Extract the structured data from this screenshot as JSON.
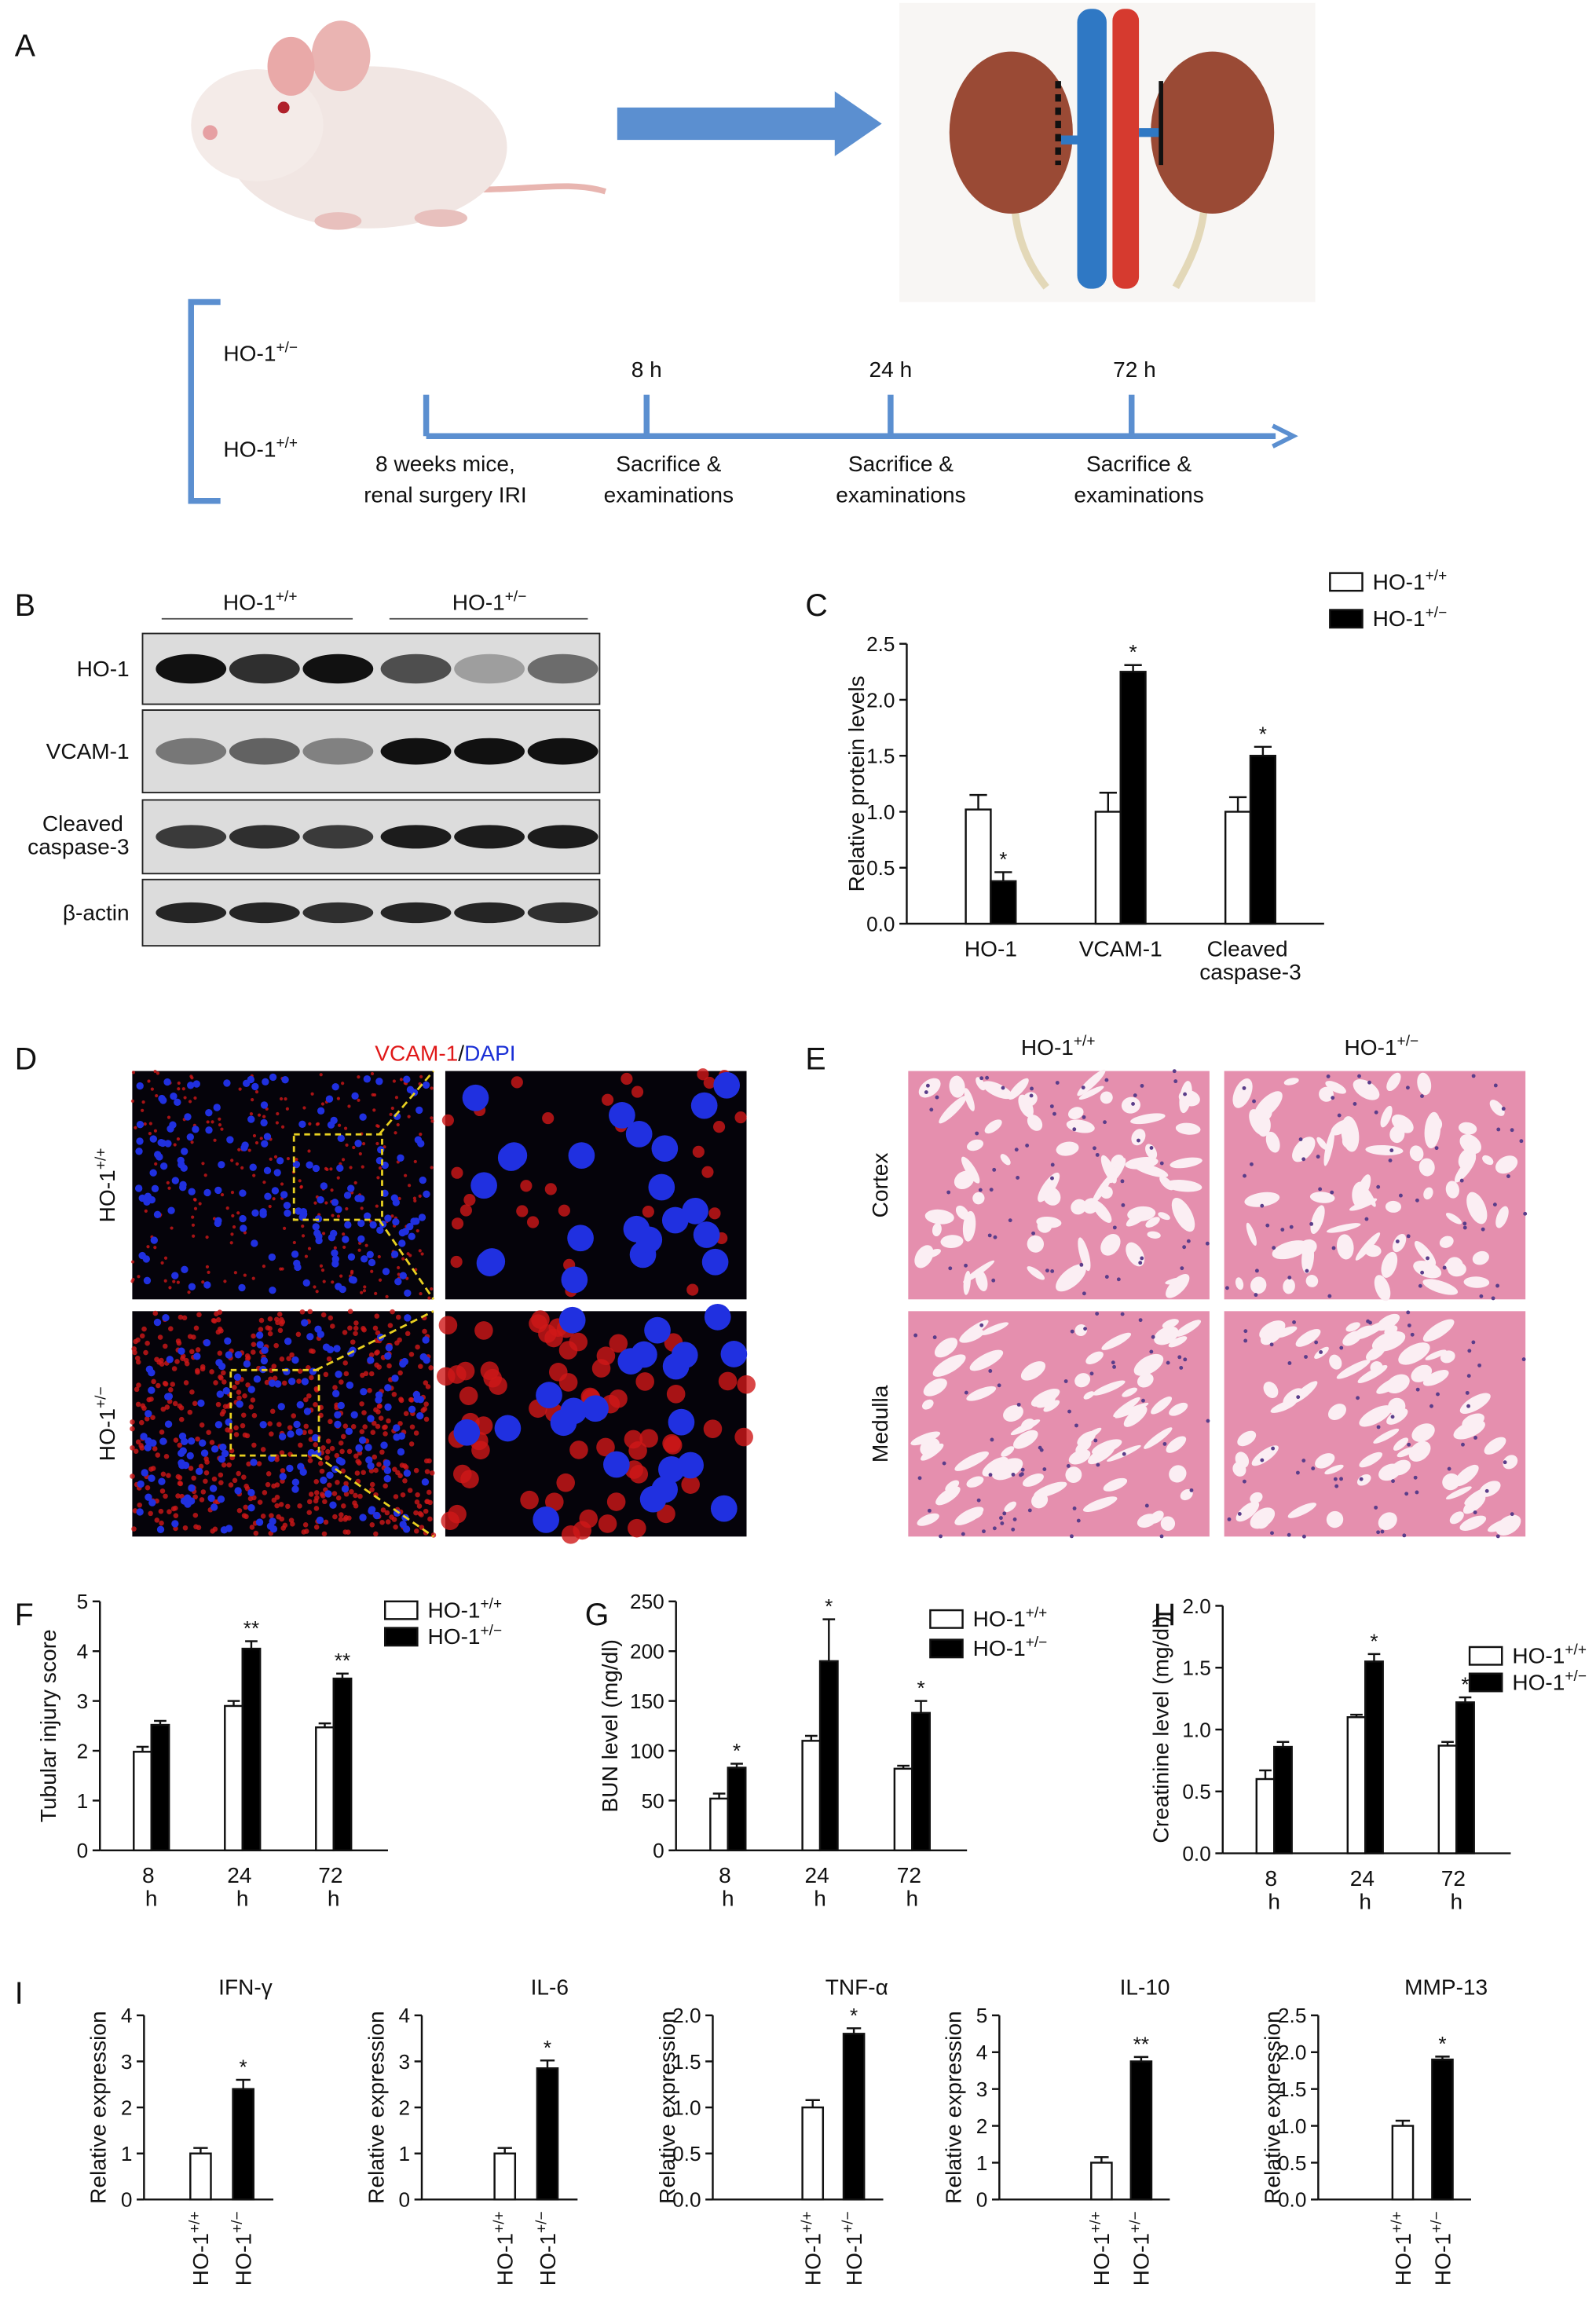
{
  "panel_a": {
    "label": "A",
    "groups": [
      "HO-1+/−",
      "HO-1+/+"
    ],
    "start": [
      "8 weeks mice,",
      "renal surgery IRI"
    ],
    "timepoints": [
      {
        "time": "8 h",
        "event": [
          "Sacrifice &",
          "examinations"
        ]
      },
      {
        "time": "24 h",
        "event": [
          "Sacrifice &",
          "examinations"
        ]
      },
      {
        "time": "72 h",
        "event": [
          "Sacrifice &",
          "examinations"
        ]
      }
    ]
  },
  "panel_b": {
    "label": "B",
    "groups": [
      "HO-1+/+",
      "HO-1+/−"
    ],
    "rows": [
      "HO-1",
      "VCAM-1",
      "Cleaved caspase-3",
      "β-actin"
    ]
  },
  "panel_d": {
    "label": "D",
    "title": [
      "VCAM-1",
      "/",
      "DAPI"
    ],
    "rows": [
      "HO-1+/+",
      "HO-1+/−"
    ]
  },
  "panel_e": {
    "label": "E",
    "columns": [
      "HO-1+/+",
      "HO-1+/−"
    ],
    "rows": [
      "Cortex",
      "Medulla"
    ]
  },
  "chart_data": [
    {
      "type": "bar",
      "panel": "C",
      "y_label": "Relative protein levels",
      "categories": [
        "HO-1",
        "VCAM-1",
        "Cleaved caspase-3"
      ],
      "series": [
        {
          "name": "HO-1+/+",
          "color": "#ffffff",
          "values": [
            1.02,
            1.0,
            1.0
          ],
          "errors": [
            0.13,
            0.17,
            0.13
          ]
        },
        {
          "name": "HO-1+/−",
          "color": "#000000",
          "values": [
            0.38,
            2.25,
            1.5
          ],
          "errors": [
            0.08,
            0.06,
            0.08
          ],
          "annotations": [
            "*",
            "*",
            "*"
          ]
        }
      ],
      "ylim": [
        0,
        2.5
      ],
      "yticks": [
        {
          "value": 0,
          "label": "0.0"
        },
        0.5,
        {
          "value": 1,
          "label": "1.0"
        },
        1.5,
        {
          "value": 2,
          "label": "2.0"
        },
        2.5
      ]
    },
    {
      "type": "bar",
      "panel": "F",
      "y_label": "Tubular injury score",
      "categories": [
        "8 h",
        "24 h",
        "72 h"
      ],
      "series": [
        {
          "name": "HO-1+/+",
          "color": "#ffffff",
          "values": [
            1.98,
            2.9,
            2.47
          ],
          "errors": [
            0.1,
            0.1,
            0.08
          ]
        },
        {
          "name": "HO-1+/−",
          "color": "#000000",
          "values": [
            2.52,
            4.05,
            3.45
          ],
          "errors": [
            0.08,
            0.15,
            0.1
          ],
          "annotations": [
            null,
            "**",
            "**"
          ]
        }
      ],
      "ylim": [
        0,
        5
      ],
      "yticks": [
        0,
        1,
        2,
        3,
        4,
        5
      ]
    },
    {
      "type": "bar",
      "panel": "G",
      "y_label": "BUN level (mg/dl)",
      "categories": [
        "8 h",
        "24 h",
        "72 h"
      ],
      "series": [
        {
          "name": "HO-1+/+",
          "color": "#ffffff",
          "values": [
            52,
            110,
            82
          ],
          "errors": [
            5,
            5,
            3
          ]
        },
        {
          "name": "HO-1+/−",
          "color": "#000000",
          "values": [
            83,
            190,
            138
          ],
          "errors": [
            4,
            42,
            12
          ],
          "annotations": [
            "*",
            "*",
            "*"
          ]
        }
      ],
      "ylim": [
        0,
        250
      ],
      "yticks": [
        0,
        50,
        100,
        150,
        200,
        250
      ]
    },
    {
      "type": "bar",
      "panel": "H",
      "y_label": "Creatinine level (mg/dl)",
      "categories": [
        "8 h",
        "24 h",
        "72 h"
      ],
      "series": [
        {
          "name": "HO-1+/+",
          "color": "#ffffff",
          "values": [
            0.6,
            1.1,
            0.87
          ],
          "errors": [
            0.07,
            0.02,
            0.03
          ]
        },
        {
          "name": "HO-1+/−",
          "color": "#000000",
          "values": [
            0.86,
            1.55,
            1.22
          ],
          "errors": [
            0.04,
            0.06,
            0.04
          ],
          "annotations": [
            null,
            "*",
            "*"
          ]
        }
      ],
      "ylim": [
        0,
        2
      ],
      "yticks": [
        {
          "value": 0,
          "label": "0.0"
        },
        0.5,
        {
          "value": 1,
          "label": "1.0"
        },
        1.5,
        {
          "value": 2,
          "label": "2.0"
        }
      ]
    },
    {
      "type": "bar",
      "panel": "I",
      "title": "IFN-γ",
      "y_label": "Relative expression",
      "categories": [
        "HO-1+/+",
        "HO-1+/−"
      ],
      "colors": [
        "#ffffff",
        "#000000"
      ],
      "values": [
        1.0,
        2.4
      ],
      "errors": [
        0.12,
        0.2
      ],
      "annotations": [
        null,
        "*"
      ],
      "ylim": [
        0,
        4
      ],
      "yticks": [
        0,
        1,
        2,
        3,
        4
      ]
    },
    {
      "type": "bar",
      "title": "IL-6",
      "y_label": "Relative expression",
      "categories": [
        "HO-1+/+",
        "HO-1+/−"
      ],
      "colors": [
        "#ffffff",
        "#000000"
      ],
      "values": [
        1.0,
        2.85
      ],
      "errors": [
        0.12,
        0.17
      ],
      "annotations": [
        null,
        "*"
      ],
      "ylim": [
        0,
        4
      ],
      "yticks": [
        0,
        1,
        2,
        3,
        4
      ]
    },
    {
      "type": "bar",
      "title": "TNF-α",
      "y_label": "Relative expression",
      "categories": [
        "HO-1+/+",
        "HO-1+/−"
      ],
      "colors": [
        "#ffffff",
        "#000000"
      ],
      "values": [
        1.0,
        1.8
      ],
      "errors": [
        0.08,
        0.06
      ],
      "annotations": [
        null,
        "*"
      ],
      "ylim": [
        0,
        2
      ],
      "yticks": [
        {
          "value": 0,
          "label": "0.0"
        },
        0.5,
        {
          "value": 1,
          "label": "1.0"
        },
        1.5,
        {
          "value": 2,
          "label": "2.0"
        }
      ]
    },
    {
      "type": "bar",
      "title": "IL-10",
      "y_label": "Relative expression",
      "categories": [
        "HO-1+/+",
        "HO-1+/−"
      ],
      "colors": [
        "#ffffff",
        "#000000"
      ],
      "values": [
        1.0,
        3.75
      ],
      "errors": [
        0.15,
        0.12
      ],
      "annotations": [
        null,
        "**"
      ],
      "ylim": [
        0,
        5
      ],
      "yticks": [
        0,
        1,
        2,
        3,
        4,
        5
      ]
    },
    {
      "type": "bar",
      "title": "MMP-13",
      "y_label": "Relative expression",
      "categories": [
        "HO-1+/+",
        "HO-1+/−"
      ],
      "colors": [
        "#ffffff",
        "#000000"
      ],
      "values": [
        1.0,
        1.9
      ],
      "errors": [
        0.07,
        0.04
      ],
      "annotations": [
        null,
        "*"
      ],
      "ylim": [
        0,
        2.5
      ],
      "yticks": [
        {
          "value": 0,
          "label": "0.0"
        },
        0.5,
        {
          "value": 1,
          "label": "1.0"
        },
        1.5,
        {
          "value": 2,
          "label": "2.0"
        },
        2.5
      ]
    }
  ]
}
